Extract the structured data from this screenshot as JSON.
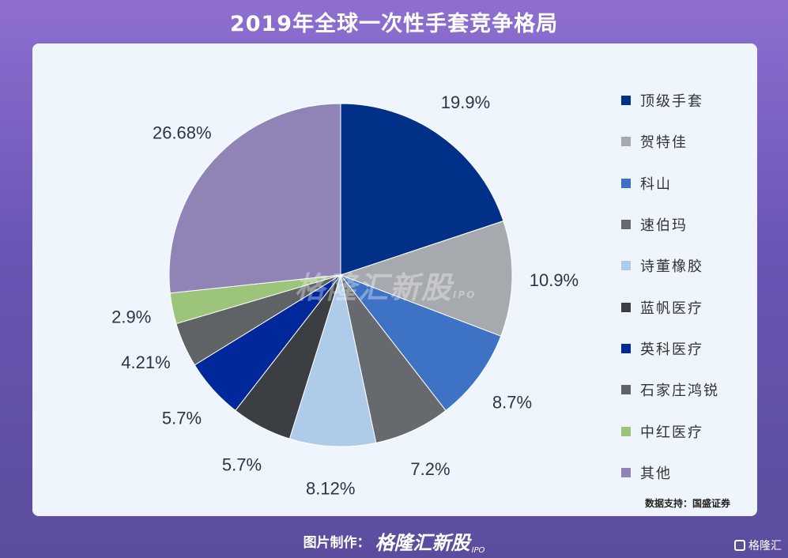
{
  "title": "2019年全球一次性手套竞争格局",
  "source": "数据支持：国盛证券",
  "footer": {
    "label": "图片制作：",
    "brand": "格隆汇新股",
    "brand_suffix": "IPO"
  },
  "watermark": {
    "text": "格隆汇新股",
    "suffix": "IPO"
  },
  "corner_logo": {
    "text": "格隆汇",
    "icon": "gelonghui-logo-icon"
  },
  "chart_data": {
    "type": "pie",
    "title": "2019年全球一次性手套竞争格局",
    "legend_position": "right",
    "start_angle_deg": 0,
    "direction": "clockwise",
    "slices": [
      {
        "name": "顶级手套",
        "value": 19.9,
        "label": "19.9%",
        "color": "#003087"
      },
      {
        "name": "贺特佳",
        "value": 10.9,
        "label": "10.9%",
        "color": "#a6a9ad"
      },
      {
        "name": "科山",
        "value": 8.7,
        "label": "8.7%",
        "color": "#3d72c4"
      },
      {
        "name": "速伯玛",
        "value": 7.2,
        "label": "7.2%",
        "color": "#666a6e"
      },
      {
        "name": "诗董橡胶",
        "value": 8.12,
        "label": "8.12%",
        "color": "#aecbea"
      },
      {
        "name": "蓝帆医疗",
        "value": 5.7,
        "label": "5.7%",
        "color": "#3b3f44"
      },
      {
        "name": "英科医疗",
        "value": 5.7,
        "label": "5.7%",
        "color": "#00289b"
      },
      {
        "name": "石家庄鸿锐",
        "value": 4.21,
        "label": "4.21%",
        "color": "#5f6366"
      },
      {
        "name": "中红医疗",
        "value": 2.9,
        "label": "2.9%",
        "color": "#9cc47a"
      },
      {
        "name": "其他",
        "value": 26.68,
        "label": "26.68%",
        "color": "#9083b5"
      }
    ]
  }
}
